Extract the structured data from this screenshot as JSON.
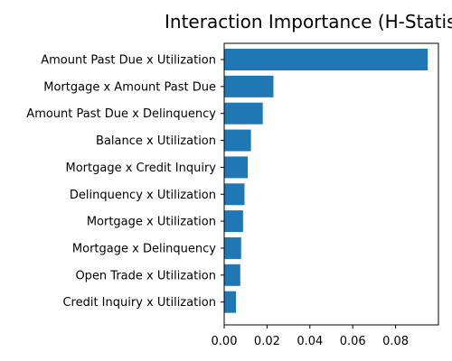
{
  "chart_data": {
    "type": "bar",
    "orientation": "horizontal",
    "title": "Interaction Importance (H-Statistic)",
    "xlabel": "",
    "ylabel": "",
    "categories": [
      "Amount Past Due x Utilization",
      "Mortgage x Amount Past Due",
      "Amount Past Due x Delinquency",
      "Balance x Utilization",
      "Mortgage x Credit Inquiry",
      "Delinquency x Utilization",
      "Mortgage x Utilization",
      "Mortgage x Delinquency",
      "Open Trade x Utilization",
      "Credit Inquiry x Utilization"
    ],
    "values": [
      0.095,
      0.023,
      0.018,
      0.0125,
      0.011,
      0.0095,
      0.0088,
      0.0079,
      0.0075,
      0.0055
    ],
    "xlim": [
      0,
      0.1
    ],
    "xticks": [
      0.0,
      0.02,
      0.04,
      0.06,
      0.08
    ],
    "xtick_labels": [
      "0.00",
      "0.02",
      "0.04",
      "0.06",
      "0.08"
    ],
    "grid": false,
    "legend": "none",
    "colors": {
      "bar": "#1f77b4",
      "axis": "#000000",
      "background": "#ffffff"
    }
  }
}
